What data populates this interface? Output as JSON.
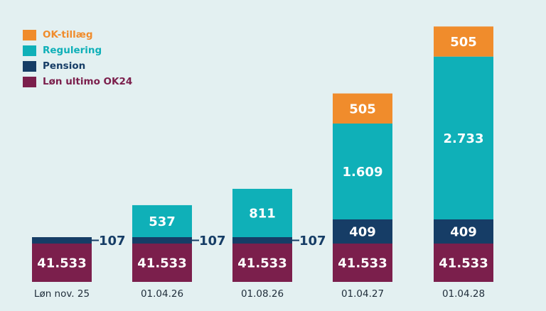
{
  "chart_data": {
    "type": "bar",
    "stacked": true,
    "categories": [
      "Løn nov. 25",
      "01.04.26",
      "01.08.26",
      "01.04.27",
      "01.04.28"
    ],
    "series": [
      {
        "name": "Løn ultimo OK24",
        "color": "#7b1f4c",
        "values": [
          41533,
          41533,
          41533,
          41533,
          41533
        ],
        "labels": [
          "41.533",
          "41.533",
          "41.533",
          "41.533",
          "41.533"
        ]
      },
      {
        "name": "Pension",
        "color": "#163d66",
        "values": [
          107,
          107,
          107,
          409,
          409
        ],
        "labels": [
          "107",
          "107",
          "107",
          "409",
          "409"
        ]
      },
      {
        "name": "Regulering",
        "color": "#0fb0b8",
        "values": [
          0,
          537,
          811,
          1609,
          2733
        ],
        "labels": [
          "",
          "537",
          "811",
          "1.609",
          "2.733"
        ]
      },
      {
        "name": "OK-tillæg",
        "color": "#f08c2c",
        "values": [
          0,
          0,
          0,
          505,
          505
        ],
        "labels": [
          "",
          "",
          "",
          "505",
          "505"
        ]
      }
    ],
    "legend": {
      "position": "top-left",
      "order": [
        "OK-tillæg",
        "Regulering",
        "Pension",
        "Løn ultimo OK24"
      ]
    },
    "axes": {
      "y_visible": false,
      "grid": false
    }
  }
}
